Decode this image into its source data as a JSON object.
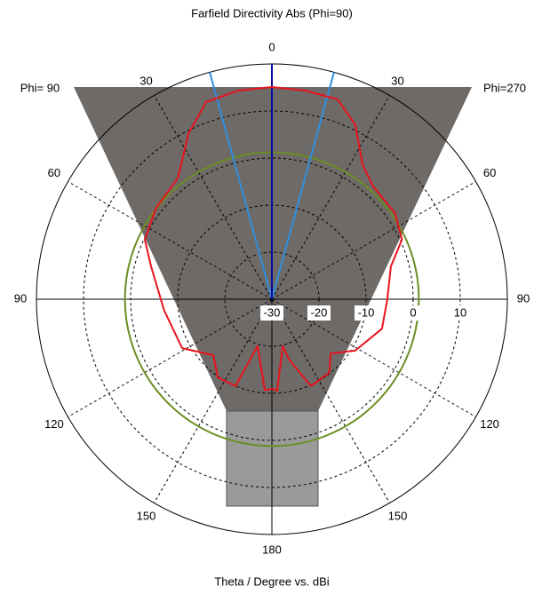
{
  "chart_data": {
    "type": "polar",
    "title": "Farfield Directivity Abs (Phi=90)",
    "xlabel": "Theta / Degree vs. dBi",
    "left_label": "Phi= 90",
    "right_label": "Phi=270",
    "x": [
      -175.6,
      -163,
      -157.3,
      -145.3,
      -133.7,
      -118.6,
      -96,
      -74.8,
      -64.9,
      -52,
      -37.7,
      -26.7,
      -18.4,
      -9,
      0,
      9,
      18.2,
      25.5,
      33.9,
      41.9,
      55,
      65.3,
      74.6,
      90,
      105,
      121.7,
      132.7,
      142,
      155.8,
      164,
      167,
      176.7,
      180
    ],
    "values": [
      -10.6,
      -19.6,
      -10,
      -9.8,
      -12.8,
      -8.3,
      -7,
      -3.4,
      -0.2,
      1.3,
      2.6,
      9.4,
      14.2,
      14.9,
      15.1,
      14.9,
      14.7,
      11.1,
      4.5,
      2.2,
      1.9,
      0.4,
      -3.8,
      -5.5,
      -5.8,
      -9.2,
      -13,
      -10.2,
      -9.8,
      -16.6,
      -19.8,
      -10.5,
      -11
    ],
    "color": "#e8141b",
    "reference_level": 1.2,
    "reference_color": "#6b8e23",
    "main_lobe_direction": 0,
    "main_lobe_color": "#0a0aa0",
    "beam_angles": [
      -15.3,
      15.3
    ],
    "beam_color": "#2f8fe0",
    "rlim": [
      -30,
      20
    ],
    "rticks": [
      -30,
      -20,
      -10,
      0,
      10
    ],
    "angle_ticks": [
      0,
      {
        "value": 30,
        "label": "30"
      },
      {
        "value": 60,
        "label": "60"
      },
      {
        "value": 90,
        "label": "90"
      },
      {
        "value": 120,
        "label": "120"
      },
      {
        "value": 150,
        "label": "150"
      },
      180,
      {
        "value": -150,
        "label": "150"
      },
      {
        "value": -120,
        "label": "120"
      },
      {
        "value": -90,
        "label": "90"
      },
      {
        "value": -60,
        "label": "60"
      },
      {
        "value": -30,
        "label": "30"
      }
    ],
    "grid": true
  }
}
